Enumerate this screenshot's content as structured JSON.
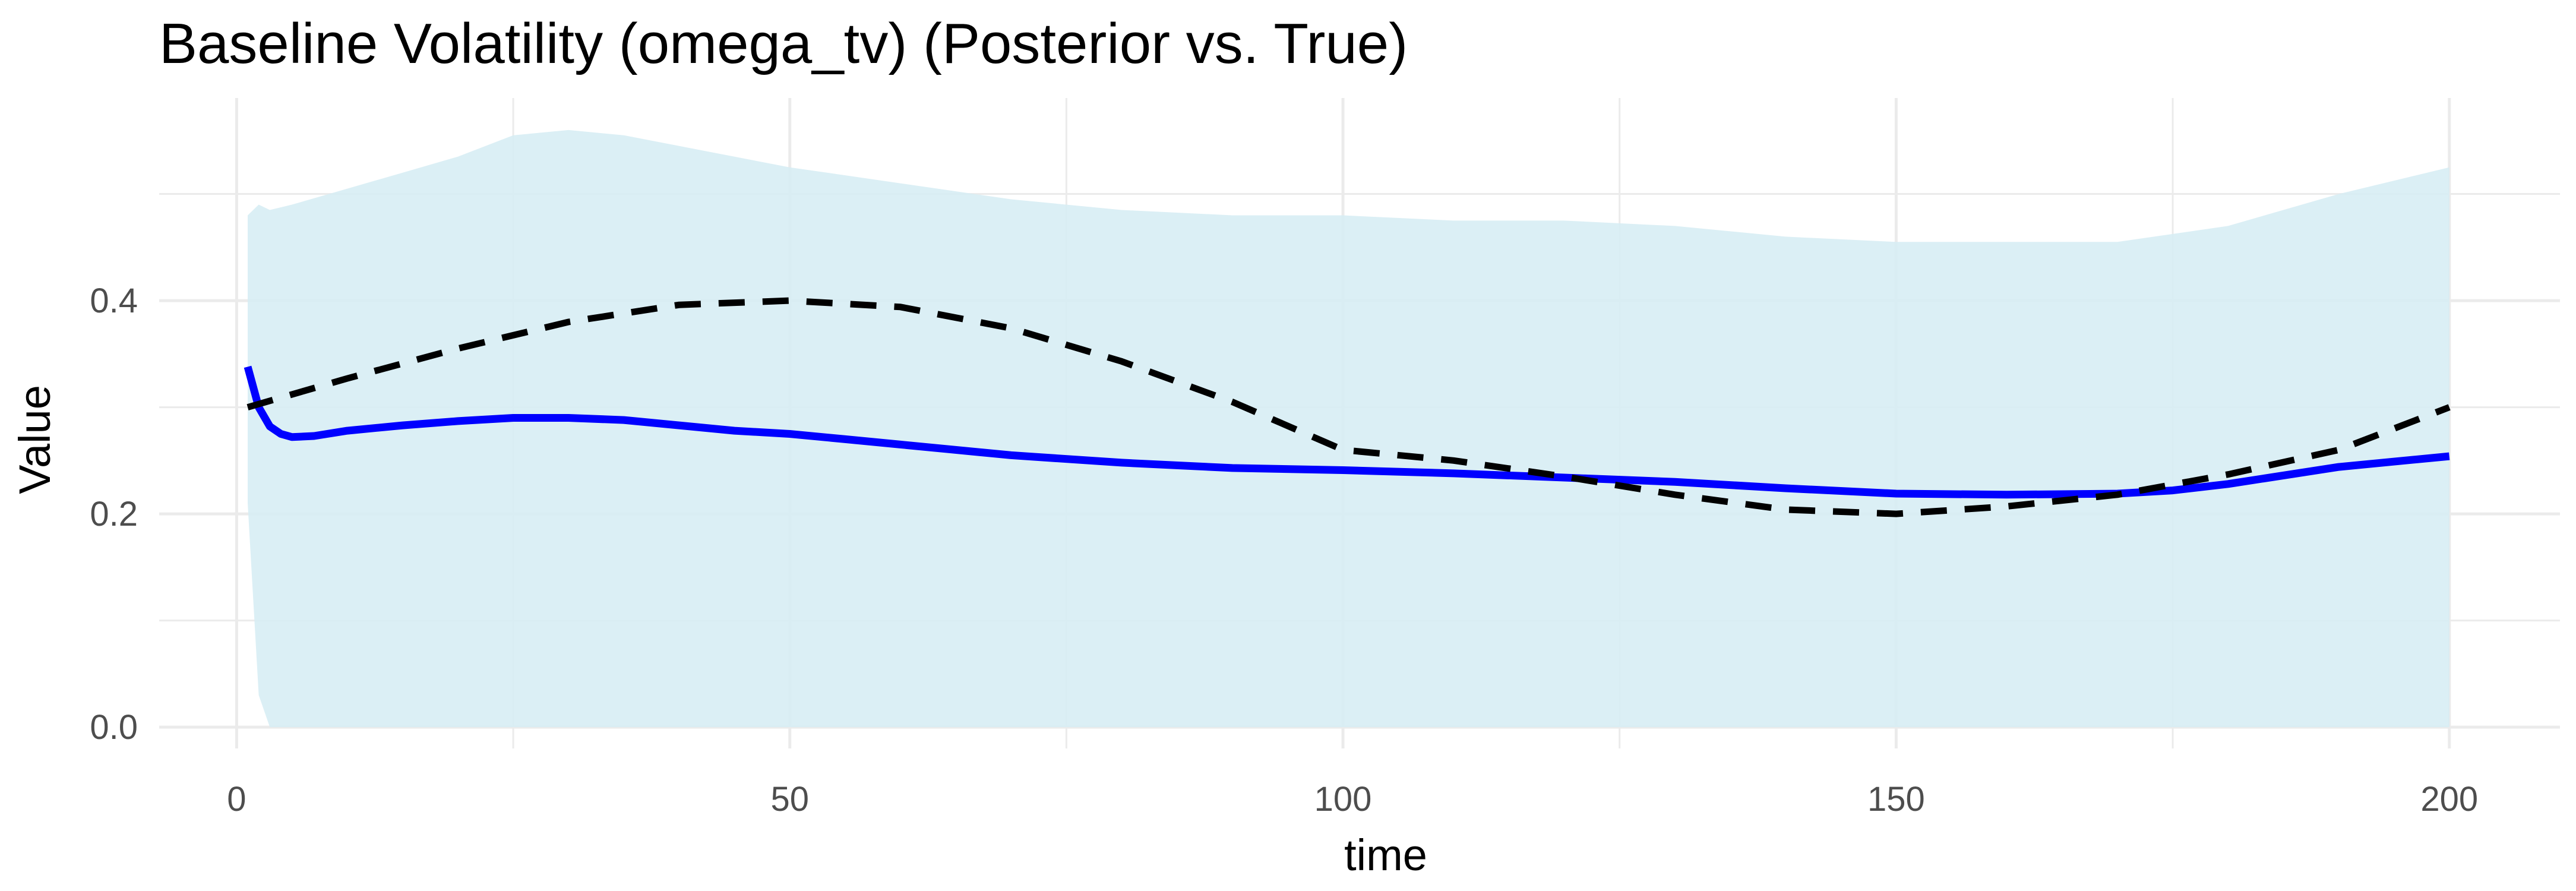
{
  "chart_data": {
    "type": "line",
    "title": "Baseline Volatility (omega_tv) (Posterior vs. True)",
    "xlabel": "time",
    "ylabel": "Value",
    "xlim": [
      -7,
      210
    ],
    "ylim": [
      -0.02,
      0.59
    ],
    "x_ticks": [
      0,
      50,
      100,
      150,
      200
    ],
    "x_tick_labels": [
      "0",
      "50",
      "100",
      "150",
      "200"
    ],
    "y_ticks": [
      0.0,
      0.2,
      0.4
    ],
    "y_tick_labels": [
      "0.0",
      "0.2",
      "0.4"
    ],
    "x_minor_ticks": [
      25,
      75,
      125,
      175
    ],
    "y_minor_ticks": [
      0.1,
      0.3,
      0.5
    ],
    "grid": true,
    "legend": "none",
    "colors": {
      "band": "#d7edf4",
      "posterior": "#0000ff",
      "true": "#000000",
      "grid": "#ebebeb"
    },
    "band": {
      "x": [
        1,
        2,
        3,
        5,
        10,
        15,
        20,
        25,
        30,
        35,
        40,
        50,
        60,
        70,
        80,
        90,
        100,
        110,
        120,
        130,
        140,
        150,
        160,
        170,
        180,
        190,
        200
      ],
      "upper": [
        0.48,
        0.49,
        0.485,
        0.49,
        0.505,
        0.52,
        0.535,
        0.555,
        0.56,
        0.555,
        0.545,
        0.525,
        0.51,
        0.495,
        0.485,
        0.48,
        0.48,
        0.475,
        0.475,
        0.47,
        0.46,
        0.455,
        0.455,
        0.455,
        0.47,
        0.5,
        0.525
      ],
      "lower": [
        0.21,
        0.03,
        0.0,
        0.0,
        0.0,
        0.0,
        0.0,
        0.0,
        0.0,
        0.0,
        0.0,
        0.0,
        0.0,
        0.0,
        0.0,
        0.0,
        0.0,
        0.0,
        0.0,
        0.0,
        0.0,
        0.0,
        0.0,
        0.0,
        0.0,
        0.0,
        0.0
      ]
    },
    "series": [
      {
        "style": "solid",
        "x": [
          1,
          2,
          3,
          4,
          5,
          7,
          10,
          15,
          20,
          25,
          30,
          35,
          40,
          45,
          50,
          55,
          60,
          70,
          80,
          90,
          100,
          110,
          120,
          130,
          140,
          150,
          160,
          170,
          175,
          180,
          190,
          200
        ],
        "values": [
          0.338,
          0.3,
          0.282,
          0.275,
          0.272,
          0.273,
          0.278,
          0.283,
          0.287,
          0.29,
          0.29,
          0.288,
          0.283,
          0.278,
          0.275,
          0.27,
          0.265,
          0.255,
          0.248,
          0.243,
          0.241,
          0.238,
          0.234,
          0.23,
          0.224,
          0.219,
          0.218,
          0.219,
          0.222,
          0.228,
          0.244,
          0.254
        ]
      },
      {
        "style": "dashed",
        "x": [
          1,
          10,
          20,
          30,
          40,
          50,
          60,
          70,
          80,
          90,
          100,
          110,
          120,
          130,
          140,
          150,
          160,
          170,
          180,
          190,
          200
        ],
        "values": [
          0.3,
          0.327,
          0.355,
          0.38,
          0.396,
          0.4,
          0.394,
          0.374,
          0.343,
          0.305,
          0.26,
          0.25,
          0.235,
          0.218,
          0.204,
          0.2,
          0.207,
          0.218,
          0.237,
          0.26,
          0.3
        ]
      }
    ]
  }
}
